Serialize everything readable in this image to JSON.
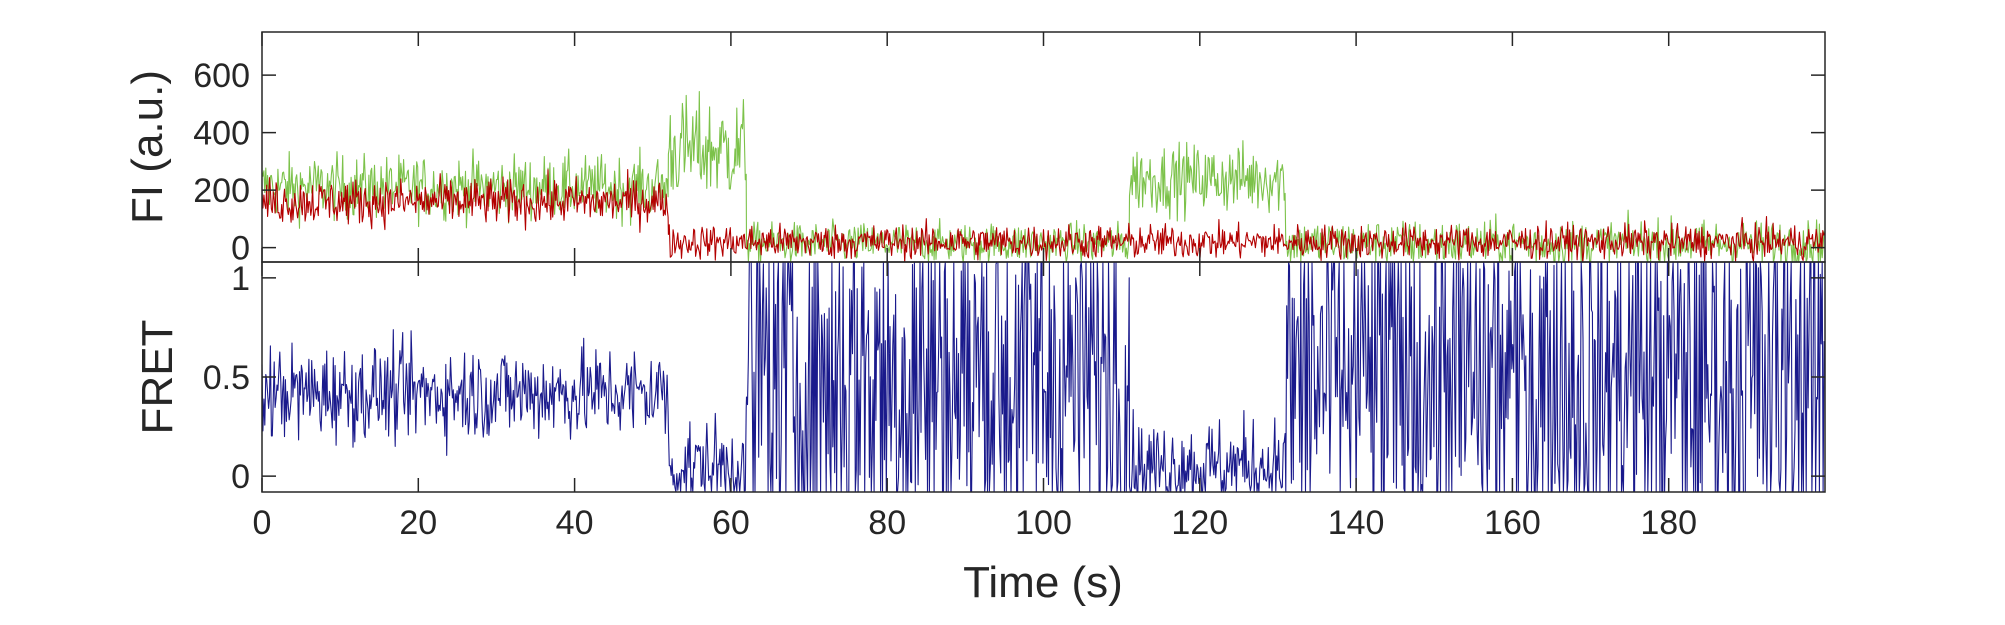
{
  "chart_data": [
    {
      "type": "line",
      "panel": "top",
      "ylabel": "FI (a.u.)",
      "xlabel": "",
      "xlim": [
        0,
        200
      ],
      "ylim": [
        -50,
        750
      ],
      "yticks": [
        0,
        200,
        400,
        600
      ],
      "yticklabels": [
        "0",
        "200",
        "400",
        "600"
      ],
      "grid": false,
      "colors": {
        "donor": "#7cc24a",
        "acceptor": "#b30000"
      },
      "series": [
        {
          "key": "donor",
          "color": "#7cc24a",
          "segments": [
            {
              "x": [
                0,
                52
              ],
              "mean": 210,
              "noise": 55
            },
            {
              "x": [
                52,
                62
              ],
              "mean": 340,
              "noise": 90
            },
            {
              "x": [
                62,
                111
              ],
              "mean": 15,
              "noise": 35
            },
            {
              "x": [
                111,
                131
              ],
              "mean": 240,
              "noise": 60
            },
            {
              "x": [
                131,
                200
              ],
              "mean": 15,
              "noise": 40
            }
          ]
        },
        {
          "key": "acceptor",
          "color": "#b30000",
          "segments": [
            {
              "x": [
                0,
                52
              ],
              "mean": 160,
              "noise": 40
            },
            {
              "x": [
                52,
                200
              ],
              "mean": 20,
              "noise": 30
            }
          ]
        }
      ]
    },
    {
      "type": "line",
      "panel": "bottom",
      "ylabel": "FRET",
      "xlabel": "Time (s)",
      "xlim": [
        0,
        200
      ],
      "ylim": [
        -0.08,
        1.08
      ],
      "yticks": [
        0,
        0.5,
        1
      ],
      "yticklabels": [
        "0",
        "0.5",
        "1"
      ],
      "xticks": [
        0,
        20,
        40,
        60,
        80,
        100,
        120,
        140,
        160,
        180
      ],
      "xticklabels": [
        "0",
        "20",
        "40",
        "60",
        "80",
        "100",
        "120",
        "140",
        "160",
        "180"
      ],
      "grid": false,
      "series": [
        {
          "key": "fret",
          "color": "#1a1a8c",
          "segments": [
            {
              "x": [
                0,
                52
              ],
              "mean": 0.42,
              "noise": 0.12
            },
            {
              "x": [
                52,
                62
              ],
              "mean": 0.05,
              "noise": 0.12
            },
            {
              "x": [
                62,
                111
              ],
              "mean": 0.5,
              "noise": 0.6
            },
            {
              "x": [
                111,
                131
              ],
              "mean": 0.05,
              "noise": 0.12
            },
            {
              "x": [
                131,
                200
              ],
              "mean": 0.5,
              "noise": 0.6
            }
          ]
        }
      ]
    }
  ]
}
